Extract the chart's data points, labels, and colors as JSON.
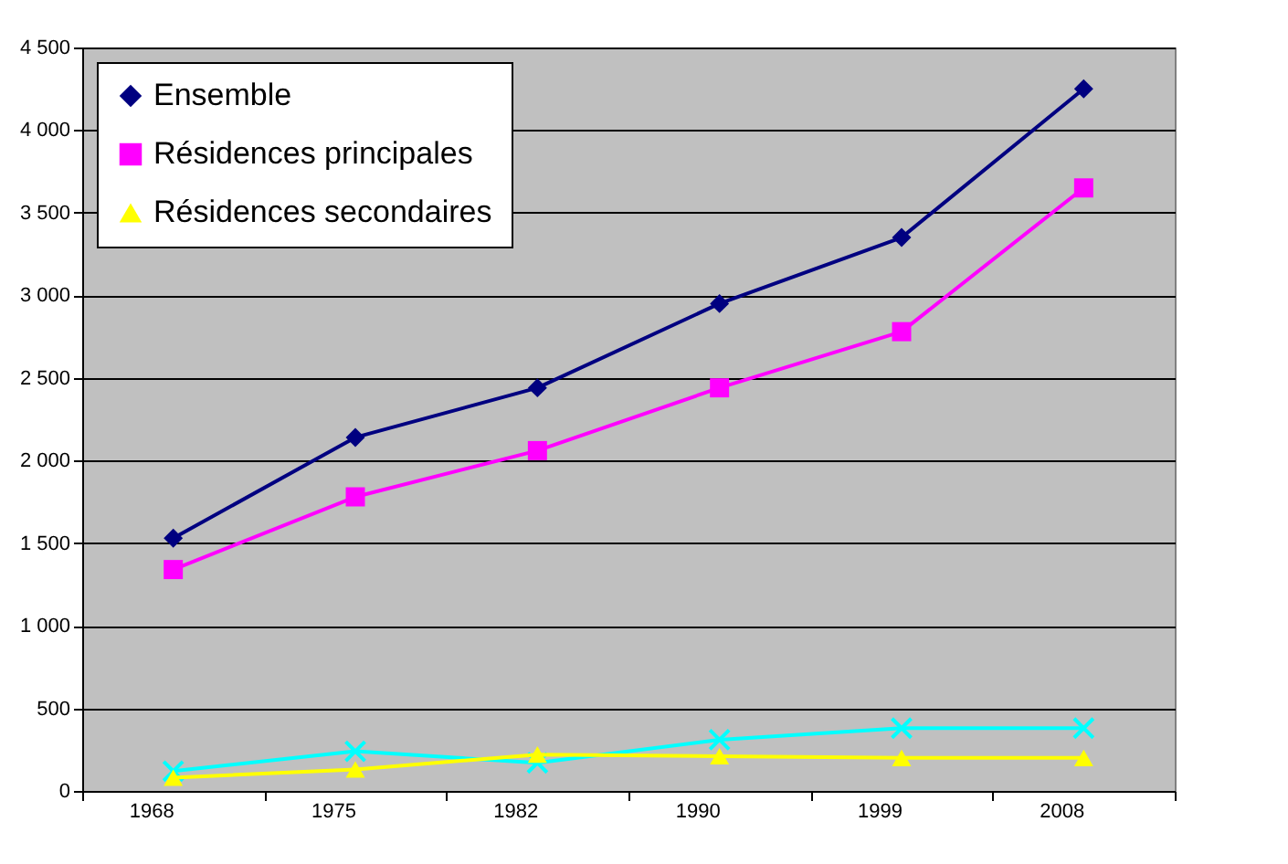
{
  "chart_data": {
    "type": "line",
    "categories": [
      "1968",
      "1975",
      "1982",
      "1990",
      "1999",
      "2008"
    ],
    "series": [
      {
        "name": "Ensemble",
        "color": "#000080",
        "marker": "diamond",
        "values": [
          1530,
          2140,
          2440,
          2950,
          3350,
          4250
        ]
      },
      {
        "name": "Résidences principales",
        "color": "#ff00ff",
        "marker": "square",
        "values": [
          1340,
          1780,
          2060,
          2440,
          2780,
          3650
        ]
      },
      {
        "name": "Résidences secondaires",
        "color": "#ffff00",
        "marker": "triangle",
        "values": [
          80,
          130,
          220,
          210,
          200,
          200
        ]
      },
      {
        "color": "#00ffff",
        "marker": "cross",
        "values": [
          120,
          240,
          170,
          310,
          380,
          380
        ]
      }
    ],
    "ylim": [
      0,
      4500
    ],
    "yticks": [
      0,
      500,
      {
        "value": 1000,
        "label": "1 000"
      },
      {
        "value": 1500,
        "label": "1 500"
      },
      {
        "value": 2000,
        "label": "2 000"
      },
      {
        "value": 2500,
        "label": "2 500"
      },
      {
        "value": 3000,
        "label": "3 000"
      },
      {
        "value": 3500,
        "label": "3 500"
      },
      {
        "value": 4000,
        "label": "4 000"
      },
      {
        "value": 4500,
        "label": "4 500"
      }
    ],
    "grid": "y",
    "legend": "top left",
    "line_style": "solid"
  }
}
